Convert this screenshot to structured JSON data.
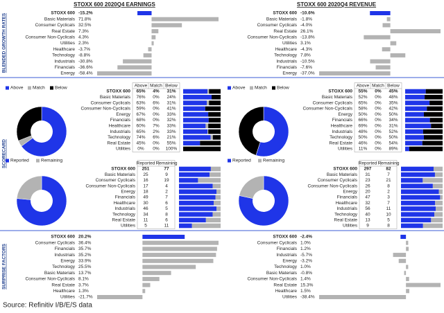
{
  "sections": {
    "growth": "BLENDED GROWTH RATES",
    "scorecard": "SCORECARD",
    "surprise": "SURPRISE FACTORS"
  },
  "colors": {
    "index": "#1f35e8",
    "sector": "#b3b3b3",
    "positive_text": "#3a9a3a",
    "negative_text": "#d42020",
    "separator": "#3b5bd6"
  },
  "panels": [
    {
      "title": "STOXX 600 2020Q4 EARNINGS",
      "growth": {
        "categories": [
          "STOXX 600",
          "Basic Materials",
          "Consumer Cyclicals",
          "Real Estate",
          "Consumer Non-Cyclicals",
          "Utilities",
          "Healthcare",
          "Technology",
          "Industrials",
          "Financials",
          "Energy"
        ],
        "values": [
          -15.2,
          71.8,
          32.5,
          7.3,
          4.3,
          2.3,
          -3.7,
          -8.8,
          -30.8,
          -36.6,
          -58.4
        ],
        "value_labels": [
          "-15.2%",
          "71.8%",
          "32.5%",
          "7.3%",
          "4.3%",
          "2.3%",
          "-3.7%",
          "-8.8%",
          "-30.8%",
          "-36.6%",
          "-58.4%"
        ]
      },
      "beat": {
        "categories": [
          "STOXX 600",
          "Basic Materials",
          "Consumer Cyclicals",
          "Consumer Non-Cyclicals",
          "Energy",
          "Financials",
          "Healthcare",
          "Industrials",
          "Technology",
          "Real Estate",
          "Utilities"
        ],
        "series": [
          {
            "name": "Above",
            "color": "#1f35e8",
            "values": [
              65,
              76,
              63,
              59,
              67,
              68,
              60,
              65,
              74,
              45,
              0
            ],
            "value_labels": [
              "65%",
              "76%",
              "63%",
              "59%",
              "67%",
              "68%",
              "60%",
              "65%",
              "74%",
              "45%",
              "0%"
            ]
          },
          {
            "name": "Match",
            "color": "#b3b3b3",
            "values": [
              4,
              0,
              6,
              0,
              0,
              0,
              7,
              2,
              6,
              0,
              0
            ],
            "value_labels": [
              "4%",
              "0%",
              "6%",
              "0%",
              "0%",
              "0%",
              "7%",
              "2%",
              "6%",
              "0%",
              "0%"
            ]
          },
          {
            "name": "Below",
            "color": "#000000",
            "values": [
              31,
              24,
              31,
              41,
              33,
              32,
              33,
              33,
              21,
              55,
              100
            ],
            "value_labels": [
              "31%",
              "24%",
              "31%",
              "41%",
              "33%",
              "32%",
              "33%",
              "33%",
              "21%",
              "55%",
              "100%"
            ]
          }
        ]
      },
      "reported": {
        "categories": [
          "STOXX 600",
          "Basic Materials",
          "Consumer Cyclicals",
          "Consumer Non-Cyclicals",
          "Energy",
          "Financials",
          "Healthcare",
          "Industrials",
          "Technology",
          "Real Estate",
          "Utilities"
        ],
        "series": [
          {
            "name": "Reported",
            "color": "#1f35e8",
            "values": [
              251,
              25,
              16,
              17,
              18,
              49,
              30,
              46,
              34,
              11,
              5
            ]
          },
          {
            "name": "Remaining",
            "color": "#b3b3b3",
            "values": [
              77,
              9,
              19,
              4,
              2,
              7,
              6,
              5,
              8,
              6,
              11
            ]
          }
        ]
      },
      "surprise": {
        "categories": [
          "STOXX 600",
          "Consumer Cyclicals",
          "Financials",
          "Industrials",
          "Energy",
          "Technology",
          "Basic Materials",
          "Consumer Non-Cyclicals",
          "Real Estate",
          "Healthcare",
          "Utilities"
        ],
        "values": [
          20.2,
          36.4,
          35.7,
          35.2,
          33.9,
          25.5,
          13.7,
          8.1,
          3.7,
          1.3,
          -21.7
        ],
        "value_labels": [
          "20.2%",
          "36.4%",
          "35.7%",
          "35.2%",
          "33.9%",
          "25.5%",
          "13.7%",
          "8.1%",
          "3.7%",
          "1.3%",
          "-21.7%"
        ]
      }
    },
    {
      "title": "STOXX 600 2020Q4 REVENUE",
      "growth": {
        "categories": [
          "STOXX 600",
          "Basic Materials",
          "Consumer Cyclicals",
          "Real Estate",
          "Consumer Non-Cyclicals",
          "Utilities",
          "Healthcare",
          "Technology",
          "Industrials",
          "Financials",
          "Energy"
        ],
        "values": [
          -10.6,
          -1.8,
          -4.0,
          26.1,
          -13.8,
          3.1,
          -4.3,
          7.8,
          -10.5,
          -7.6,
          -37.0
        ],
        "value_labels": [
          "-10.6%",
          "-1.8%",
          "-4.0%",
          "26.1%",
          "-13.8%",
          "3.1%",
          "-4.3%",
          "7.8%",
          "-10.5%",
          "-7.6%",
          "-37.0%"
        ]
      },
      "beat": {
        "categories": [
          "STOXX 600",
          "Basic Materials",
          "Consumer Cyclicals",
          "Consumer Non-Cyclicals",
          "Energy",
          "Financials",
          "Healthcare",
          "Industrials",
          "Technology",
          "Real Estate",
          "Utilities"
        ],
        "series": [
          {
            "name": "Above",
            "color": "#1f35e8",
            "values": [
              55,
              52,
              65,
              58,
              50,
              66,
              69,
              48,
              50,
              46,
              11
            ],
            "value_labels": [
              "55%",
              "52%",
              "65%",
              "58%",
              "50%",
              "66%",
              "69%",
              "48%",
              "50%",
              "46%",
              "11%"
            ]
          },
          {
            "name": "Match",
            "color": "#b3b3b3",
            "values": [
              0,
              0,
              0,
              0,
              0,
              0,
              0,
              0,
              0,
              0,
              0
            ],
            "value_labels": [
              "0%",
              "0%",
              "0%",
              "0%",
              "0%",
              "0%",
              "0%",
              "0%",
              "0%",
              "0%",
              "0%"
            ]
          },
          {
            "name": "Below",
            "color": "#000000",
            "values": [
              45,
              48,
              35,
              42,
              50,
              34,
              31,
              52,
              50,
              54,
              89
            ],
            "value_labels": [
              "45%",
              "48%",
              "35%",
              "42%",
              "50%",
              "34%",
              "31%",
              "52%",
              "50%",
              "54%",
              "89%"
            ]
          }
        ]
      },
      "reported": {
        "categories": [
          "STOXX 600",
          "Basic Materials",
          "Consumer Cyclicals",
          "Consumer Non-Cyclicals",
          "Energy",
          "Financials",
          "Healthcare",
          "Industrials",
          "Technology",
          "Real Estate",
          "Utilities"
        ],
        "series": [
          {
            "name": "Reported",
            "color": "#1f35e8",
            "values": [
              297,
              31,
              23,
              26,
              20,
              47,
              32,
              56,
              40,
              13,
              9
            ]
          },
          {
            "name": "Remaining",
            "color": "#b3b3b3",
            "values": [
              82,
              7,
              21,
              8,
              2,
              3,
              7,
              11,
              10,
              5,
              8
            ]
          }
        ]
      },
      "surprise": {
        "categories": [
          "STOXX 600",
          "Consumer Cyclicals",
          "Financials",
          "Industrials",
          "Energy",
          "Technology",
          "Basic Materials",
          "Consumer Non-Cyclicals",
          "Real Estate",
          "Healthcare",
          "Utilities"
        ],
        "values": [
          -2.4,
          1.0,
          1.2,
          -5.7,
          -3.2,
          1.0,
          -0.8,
          1.4,
          15.3,
          1.5,
          -38.4
        ],
        "value_labels": [
          "-2.4%",
          "1.0%",
          "1.2%",
          "-5.7%",
          "-3.2%",
          "1.0%",
          "-0.8%",
          "1.4%",
          "15.3%",
          "1.5%",
          "-38.4%"
        ]
      }
    }
  ],
  "source": "Source: Refinitiv I/B/E/S data"
}
